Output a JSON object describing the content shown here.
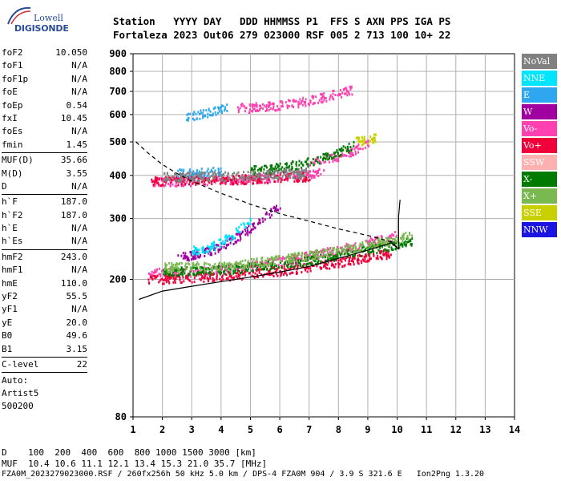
{
  "logo": {
    "line1": "Lowell",
    "line2": "DIGISONDE"
  },
  "header": {
    "line1": "Station   YYYY DAY   DDD HHMMSS P1  FFS S AXN PPS IGA PS",
    "line2": "Fortaleza 2023 Out06 279 023000 RSF 005 2 713 100 10+ 22"
  },
  "params": {
    "group1": [
      {
        "label": "foF2",
        "value": "10.050"
      },
      {
        "label": "foF1",
        "value": "N/A"
      },
      {
        "label": "foF1p",
        "value": "N/A"
      },
      {
        "label": "foE",
        "value": "N/A"
      },
      {
        "label": "foEp",
        "value": "0.54"
      },
      {
        "label": "fxI",
        "value": "10.45"
      },
      {
        "label": "foEs",
        "value": "N/A"
      },
      {
        "label": "fmin",
        "value": "1.45"
      }
    ],
    "group2": [
      {
        "label": "MUF(D)",
        "value": "35.66"
      },
      {
        "label": "M(D)",
        "value": "3.55"
      },
      {
        "label": "D",
        "value": "N/A"
      }
    ],
    "group3": [
      {
        "label": "h`F",
        "value": "187.0"
      },
      {
        "label": "h`F2",
        "value": "187.0"
      },
      {
        "label": "h`E",
        "value": "N/A"
      },
      {
        "label": "h`Es",
        "value": "N/A"
      }
    ],
    "group4": [
      {
        "label": "hmF2",
        "value": "243.0"
      },
      {
        "label": "hmF1",
        "value": "N/A"
      },
      {
        "label": "hmE",
        "value": "110.0"
      },
      {
        "label": "yF2",
        "value": "55.5"
      },
      {
        "label": "yF1",
        "value": "N/A"
      },
      {
        "label": "yE",
        "value": "20.0"
      },
      {
        "label": "B0",
        "value": "49.6"
      },
      {
        "label": "B1",
        "value": "3.15"
      }
    ],
    "group5": [
      {
        "label": "C-level",
        "value": "22"
      }
    ],
    "auto": [
      "Auto:",
      "Artist5",
      "500200"
    ]
  },
  "legend": [
    {
      "label": "NoVal",
      "bg": "#808080",
      "fg": "#ffffff"
    },
    {
      "label": "NNE",
      "bg": "#00e5ff",
      "fg": "#ffffff"
    },
    {
      "label": "E",
      "bg": "#2ea7f0",
      "fg": "#ffffff"
    },
    {
      "label": "W",
      "bg": "#a000a0",
      "fg": "#ffffff"
    },
    {
      "label": "Vo-",
      "bg": "#ff40b0",
      "fg": "#ffffff"
    },
    {
      "label": "Vo+",
      "bg": "#f0003a",
      "fg": "#ffffff"
    },
    {
      "label": "SSW",
      "bg": "#ffb0b0",
      "fg": "#ffffff"
    },
    {
      "label": "X-",
      "bg": "#007a00",
      "fg": "#ffffff"
    },
    {
      "label": "X+",
      "bg": "#7ab850",
      "fg": "#ffffff"
    },
    {
      "label": "SSE",
      "bg": "#c8d000",
      "fg": "#ffffff"
    },
    {
      "label": "NNW",
      "bg": "#1c14e0",
      "fg": "#ffffff"
    }
  ],
  "footer": {
    "line1": "D    100  200  400  600  800 1000 1500 3000 [km]",
    "line2": "MUF  10.4 10.6 11.1 12.1 13.4 15.3 21.0 35.7 [MHz]",
    "line3": "FZA0M_2023279023000.RSF / 260fx256h 50 kHz 5.0 km / DPS-4 FZA0M 904 / 3.9 S 321.6 E   Ion2Png 1.3.20"
  },
  "chart_data": {
    "type": "scatter",
    "xlim": [
      1,
      14
    ],
    "ylim": [
      80,
      900
    ],
    "y_scale": "log",
    "xticks": [
      "1",
      "2",
      "3",
      "4",
      "5",
      "6",
      "7",
      "8",
      "9",
      "10",
      "11",
      "12",
      "13",
      "14"
    ],
    "yticks": [
      "80",
      "200",
      "300",
      "400",
      "500",
      "600",
      "700",
      "800",
      "900"
    ],
    "grid": true,
    "legend_position": "right",
    "series": [
      {
        "name": "Vo-",
        "color": "#ff40b0",
        "bands": [
          {
            "x0": 1.5,
            "x1": 10.0,
            "y0": 195,
            "y1": 270
          },
          {
            "x0": 1.6,
            "x1": 7.5,
            "y0": 380,
            "y1": 410
          },
          {
            "x0": 7.0,
            "x1": 9.0,
            "y0": 430,
            "y1": 500
          },
          {
            "x0": 4.5,
            "x1": 8.5,
            "y0": 610,
            "y1": 715
          }
        ]
      },
      {
        "name": "Vo+",
        "color": "#f0003a",
        "bands": [
          {
            "x0": 1.5,
            "x1": 9.8,
            "y0": 192,
            "y1": 240
          },
          {
            "x0": 1.6,
            "x1": 7.0,
            "y0": 385,
            "y1": 400
          }
        ]
      },
      {
        "name": "W",
        "color": "#a000a0",
        "bands": [
          {
            "x0": 2.5,
            "x1": 6.0,
            "y0": 210,
            "y1": 330
          }
        ]
      },
      {
        "name": "X-",
        "color": "#007a00",
        "bands": [
          {
            "x0": 2.0,
            "x1": 10.5,
            "y0": 200,
            "y1": 260
          },
          {
            "x0": 5.0,
            "x1": 8.5,
            "y0": 400,
            "y1": 490
          }
        ]
      },
      {
        "name": "X+",
        "color": "#7ab850",
        "bands": [
          {
            "x0": 2.0,
            "x1": 10.5,
            "y0": 205,
            "y1": 270
          }
        ]
      },
      {
        "name": "E",
        "color": "#2ea7f0",
        "bands": [
          {
            "x0": 2.8,
            "x1": 4.2,
            "y0": 590,
            "y1": 635
          },
          {
            "x0": 2.5,
            "x1": 4.0,
            "y0": 405,
            "y1": 415
          }
        ]
      },
      {
        "name": "NNE",
        "color": "#00e5ff",
        "bands": [
          {
            "x0": 3.0,
            "x1": 5.0,
            "y0": 230,
            "y1": 300
          }
        ]
      },
      {
        "name": "SSE",
        "color": "#c8d000",
        "bands": [
          {
            "x0": 8.5,
            "x1": 9.3,
            "y0": 500,
            "y1": 520
          }
        ]
      },
      {
        "name": "NoVal",
        "color": "#808080",
        "bands": [
          {
            "x0": 2.0,
            "x1": 7.0,
            "y0": 395,
            "y1": 410
          }
        ]
      }
    ],
    "profile_solid": [
      [
        1.2,
        175
      ],
      [
        2,
        185
      ],
      [
        3,
        191
      ],
      [
        4,
        197
      ],
      [
        5,
        203
      ],
      [
        6,
        210
      ],
      [
        7,
        218
      ],
      [
        8,
        230
      ],
      [
        9,
        243
      ],
      [
        9.8,
        255
      ],
      [
        10.05,
        245
      ],
      [
        10.05,
        270
      ],
      [
        10.05,
        305
      ],
      [
        10.1,
        340
      ]
    ],
    "profile_dashed": [
      [
        1.1,
        500
      ],
      [
        1.5,
        465
      ],
      [
        2,
        430
      ],
      [
        2.5,
        405
      ],
      [
        3,
        385
      ],
      [
        4,
        355
      ],
      [
        5,
        330
      ],
      [
        6,
        310
      ],
      [
        7,
        295
      ],
      [
        8,
        280
      ],
      [
        9,
        268
      ],
      [
        9.8,
        257
      ],
      [
        10.05,
        245
      ]
    ]
  }
}
